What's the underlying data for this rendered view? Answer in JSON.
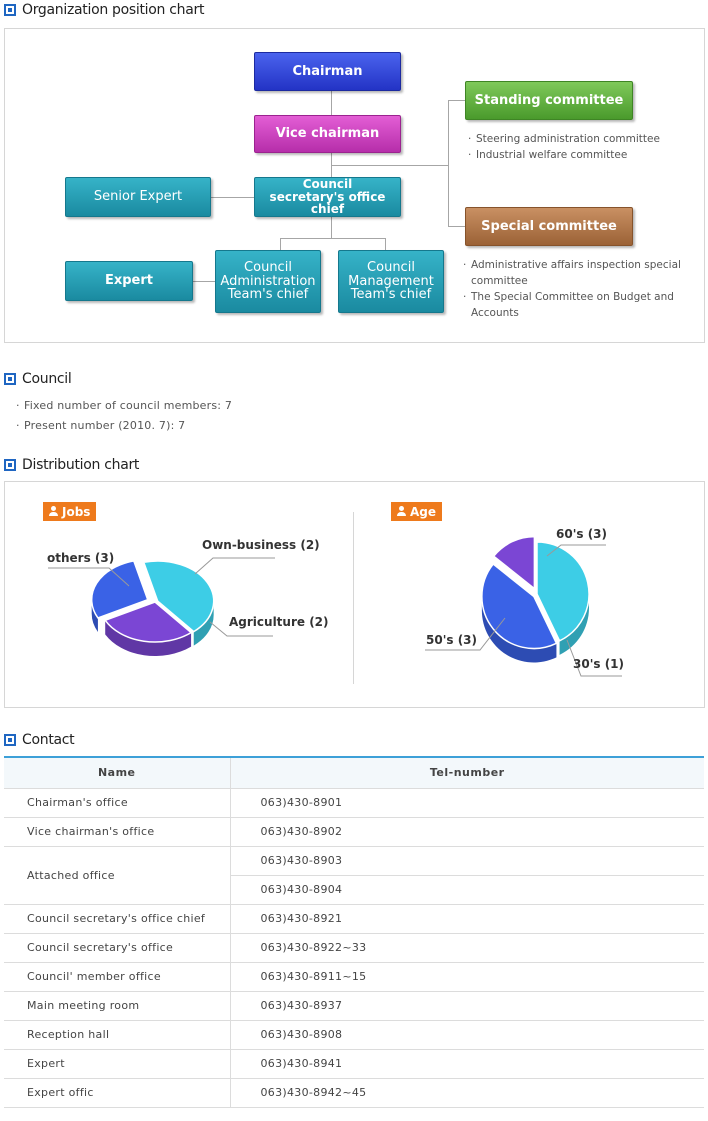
{
  "sections": {
    "org": "Organization position chart",
    "council": "Council",
    "distribution": "Distribution chart",
    "contact": "Contact"
  },
  "org": {
    "chairman": "Chairman",
    "vice_chairman": "Vice chairman",
    "secretary_chief": "Council secretary's office chief",
    "senior_expert": "Senior Expert",
    "expert": "Expert",
    "admin_chief": "Council Administration Team's chief",
    "management_chief": "Council Management Team's chief",
    "standing_committee": "Standing committee",
    "standing_items": [
      "Steering administration committee",
      "Industrial welfare committee"
    ],
    "special_committee": "Special committee",
    "special_items": [
      "Administrative affairs inspection special committee",
      "The Special Committee on Budget and Accounts"
    ]
  },
  "council": {
    "items": [
      "Fixed number of council members: 7",
      "Present number (2010. 7): 7"
    ]
  },
  "chart_data": [
    {
      "type": "pie",
      "title": "Jobs",
      "labels": [
        "others (3)",
        "Own-business (2)",
        "Agriculture (2)"
      ],
      "categories": [
        "others",
        "Own-business",
        "Agriculture"
      ],
      "values": [
        3,
        2,
        2
      ],
      "colors": [
        "#3dcde6",
        "#7b46d4",
        "#3a62e6"
      ]
    },
    {
      "type": "pie",
      "title": "Age",
      "labels": [
        "50's (3)",
        "60's (3)",
        "30's (1)"
      ],
      "categories": [
        "50's",
        "60's",
        "30's"
      ],
      "values": [
        3,
        3,
        1
      ],
      "colors": [
        "#3dcde6",
        "#3a62e6",
        "#7b46d4"
      ]
    }
  ],
  "contact": {
    "headers": [
      "Name",
      "Tel-number"
    ],
    "rows": [
      {
        "name": "Chairman's office",
        "tels": [
          "063)430-8901"
        ]
      },
      {
        "name": "Vice chairman's office",
        "tels": [
          "063)430-8902"
        ]
      },
      {
        "name": "Attached office",
        "tels": [
          "063)430-8903",
          "063)430-8904"
        ]
      },
      {
        "name": "Council secretary's office chief",
        "tels": [
          "063)430-8921"
        ]
      },
      {
        "name": "Council secretary's office",
        "tels": [
          "063)430-8922~33"
        ]
      },
      {
        "name": "Council' member office",
        "tels": [
          "063)430-8911~15"
        ]
      },
      {
        "name": "Main meeting room",
        "tels": [
          "063)430-8937"
        ]
      },
      {
        "name": "Reception hall",
        "tels": [
          "063)430-8908"
        ]
      },
      {
        "name": "Expert",
        "tels": [
          "063)430-8941"
        ]
      },
      {
        "name": "Expert offic",
        "tels": [
          "063)430-8942~45"
        ]
      }
    ]
  }
}
